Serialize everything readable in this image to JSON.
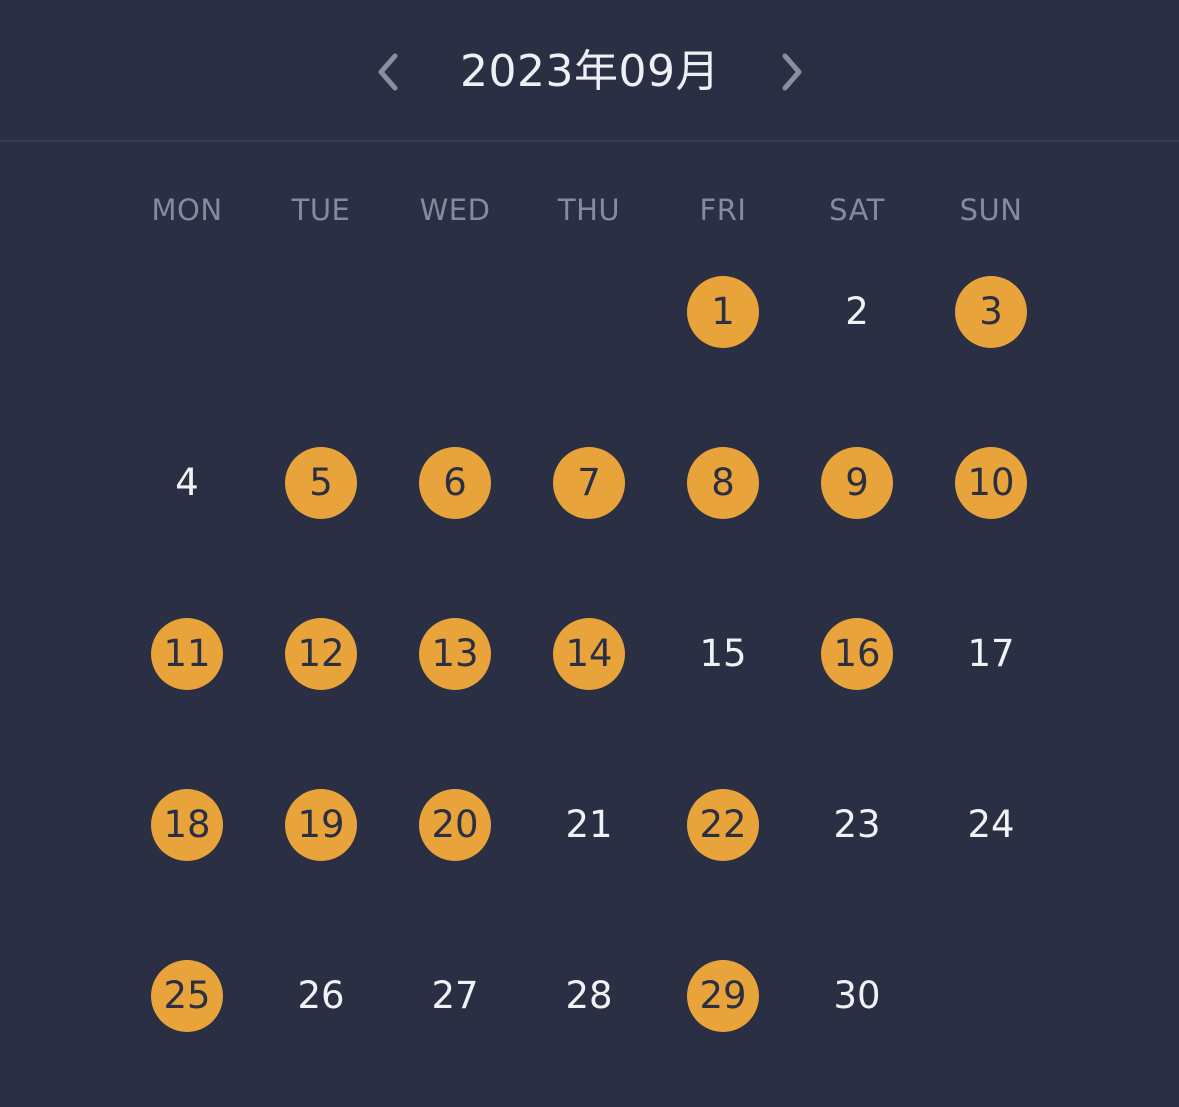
{
  "header": {
    "title": "2023年09月",
    "prev_icon": "chevron-left-icon",
    "next_icon": "chevron-right-icon"
  },
  "weekdays": [
    "MON",
    "TUE",
    "WED",
    "THU",
    "FRI",
    "SAT",
    "SUN"
  ],
  "calendar": {
    "leading_blanks": 4,
    "days": [
      {
        "label": "1",
        "checked": true
      },
      {
        "label": "2",
        "checked": false
      },
      {
        "label": "3",
        "checked": true
      },
      {
        "label": "4",
        "checked": false
      },
      {
        "label": "5",
        "checked": true
      },
      {
        "label": "6",
        "checked": true
      },
      {
        "label": "7",
        "checked": true
      },
      {
        "label": "8",
        "checked": true
      },
      {
        "label": "9",
        "checked": true
      },
      {
        "label": "10",
        "checked": true
      },
      {
        "label": "11",
        "checked": true
      },
      {
        "label": "12",
        "checked": true
      },
      {
        "label": "13",
        "checked": true
      },
      {
        "label": "14",
        "checked": true
      },
      {
        "label": "15",
        "checked": false
      },
      {
        "label": "16",
        "checked": true
      },
      {
        "label": "17",
        "checked": false
      },
      {
        "label": "18",
        "checked": true
      },
      {
        "label": "19",
        "checked": true
      },
      {
        "label": "20",
        "checked": true
      },
      {
        "label": "21",
        "checked": false
      },
      {
        "label": "22",
        "checked": true
      },
      {
        "label": "23",
        "checked": false
      },
      {
        "label": "24",
        "checked": false
      },
      {
        "label": "25",
        "checked": true
      },
      {
        "label": "26",
        "checked": false
      },
      {
        "label": "27",
        "checked": false
      },
      {
        "label": "28",
        "checked": false
      },
      {
        "label": "29",
        "checked": true
      },
      {
        "label": "30",
        "checked": false
      }
    ]
  },
  "colors": {
    "background": "#2b2f43",
    "accent": "#e8a43a",
    "day_text": "#f1f2f6",
    "weekday_text": "#868a9e",
    "divider": "#353a50"
  }
}
